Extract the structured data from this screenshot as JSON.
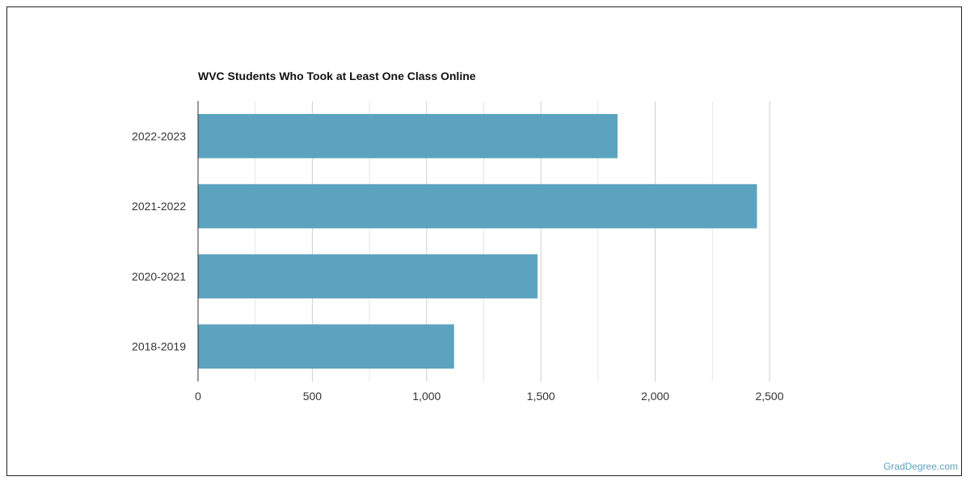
{
  "chart_data": {
    "type": "bar",
    "orientation": "horizontal",
    "title": "WVC Students Who Took at Least One Class Online",
    "categories": [
      "2022-2023",
      "2021-2022",
      "2020-2021",
      "2018-2019"
    ],
    "values": [
      1835,
      2445,
      1485,
      1120
    ],
    "xlim": [
      0,
      2500
    ],
    "x_ticks": [
      0,
      500,
      1000,
      1500,
      2000,
      2500
    ],
    "x_tick_labels": [
      "0",
      "500",
      "1,000",
      "1,500",
      "2,000",
      "2,500"
    ],
    "grid": "vertical",
    "legend": "none",
    "bar_color": "#5ba3bf"
  },
  "watermark": "GradDegree.com"
}
